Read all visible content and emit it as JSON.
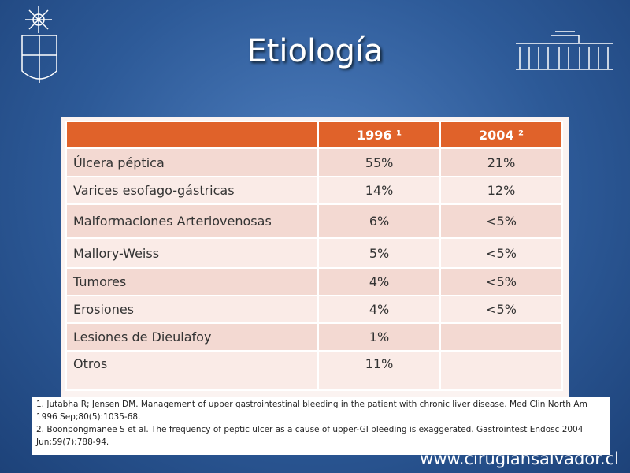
{
  "title": "Etiología",
  "table": {
    "header": [
      null,
      "1996 ¹",
      "2004 ²"
    ],
    "rows": [
      [
        "Úlcera péptica",
        "55%",
        "21%"
      ],
      [
        "Varices esofago-gástricas",
        "14%",
        "12%"
      ],
      [
        "Malformaciones Arteriovenosas",
        "6%",
        "<5%"
      ],
      [
        "Mallory-Weiss",
        "5%",
        "<5%"
      ],
      [
        "Tumores",
        "4%",
        "<5%"
      ],
      [
        "Erosiones",
        "4%",
        "<5%"
      ],
      [
        "Lesiones de Dieulafoy",
        "1%",
        null
      ],
      [
        "Otros",
        "11%",
        null
      ]
    ]
  },
  "references": [
    "1. Jutabha R; Jensen DM. Management of upper gastrointestinal bleeding in the patient with chronic liver disease. Med Clin North Am 1996 Sep;80(5):1035-68.",
    "2. Boonpongmanee S et al. The frequency of peptic ulcer as a cause of upper-GI bleeding is exaggerated. Gastrointest Endosc 2004 Jun;59(7):788-94."
  ],
  "footer": "www.cirugiahsalvador.cl"
}
